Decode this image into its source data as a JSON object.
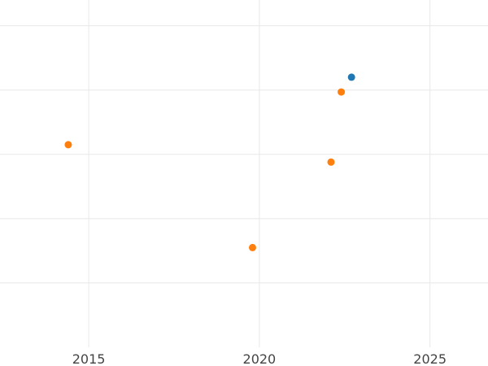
{
  "chart_data": {
    "type": "scatter",
    "title": "",
    "xlabel": "",
    "ylabel": "",
    "xlim": [
      2012.4,
      2026.7
    ],
    "ylim": [
      0,
      5.4
    ],
    "x_ticks": [
      2015,
      2020,
      2025
    ],
    "x_tick_labels": [
      "2015",
      "2020",
      "2025"
    ],
    "y_gridlines": [
      1,
      2,
      3,
      4,
      5
    ],
    "grid": true,
    "legend": "none",
    "series": [
      {
        "color": "#1f77b4",
        "points": [
          {
            "x": 2022.7,
            "y": 4.2
          }
        ]
      },
      {
        "color": "#ff7f0e",
        "points": [
          {
            "x": 2014.4,
            "y": 3.15
          },
          {
            "x": 2019.8,
            "y": 1.55
          },
          {
            "x": 2022.1,
            "y": 2.88
          },
          {
            "x": 2022.4,
            "y": 3.97
          }
        ]
      }
    ]
  }
}
